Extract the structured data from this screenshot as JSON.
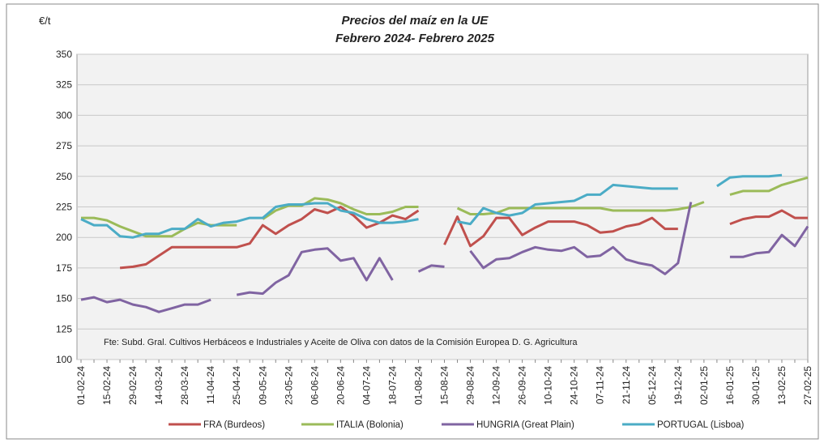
{
  "chart_data": {
    "type": "line",
    "title": "Precios del maíz en la UE",
    "subtitle": "Febrero 2024- Febrero 2025",
    "y_label": "€/t",
    "source": "Fte: Subd. Gral. Cultivos Herbáceos e Industriales y Aceite de Oliva con datos de la Comisión Europea D. G. Agricultura",
    "categories": [
      "01-02-24",
      null,
      "15-02-24",
      null,
      "29-02-24",
      null,
      "14-03-24",
      null,
      "28-03-24",
      null,
      "11-04-24",
      null,
      "25-04-24",
      null,
      "09-05-24",
      null,
      "23-05-24",
      null,
      "06-06-24",
      null,
      "20-06-24",
      null,
      "04-07-24",
      null,
      "18-07-24",
      null,
      "01-08-24",
      null,
      "15-08-24",
      null,
      "29-08-24",
      null,
      "12-09-24",
      null,
      "26-09-24",
      null,
      "10-10-24",
      null,
      "24-10-24",
      null,
      "07-11-24",
      null,
      "21-11-24",
      null,
      "05-12-24",
      null,
      "19-12-24",
      null,
      "02-01-25",
      null,
      "16-01-25",
      null,
      "30-01-25",
      null,
      "13-02-25",
      null,
      "27-02-25"
    ],
    "series": [
      {
        "name": "FRA (Burdeos)",
        "color": "#c0504d",
        "values": [
          null,
          null,
          null,
          175,
          176,
          178,
          185,
          192,
          192,
          192,
          192,
          192,
          192,
          195,
          210,
          203,
          210,
          215,
          223,
          220,
          225,
          218,
          208,
          212,
          218,
          215,
          222,
          null,
          194,
          217,
          193,
          201,
          216,
          216,
          202,
          208,
          213,
          213,
          213,
          210,
          204,
          205,
          209,
          211,
          216,
          207,
          207,
          null,
          null,
          null,
          211,
          215,
          217,
          217,
          222,
          216,
          216
        ]
      },
      {
        "name": "ITALIA (Bolonia)",
        "color": "#9bbb59",
        "values": [
          216,
          216,
          214,
          209,
          205,
          201,
          201,
          201,
          207,
          212,
          210,
          210,
          210,
          null,
          215,
          222,
          226,
          226,
          232,
          231,
          228,
          223,
          219,
          219,
          221,
          225,
          225,
          null,
          null,
          224,
          219,
          219,
          220,
          224,
          224,
          224,
          224,
          224,
          224,
          224,
          224,
          222,
          222,
          222,
          222,
          222,
          223,
          225,
          229,
          null,
          235,
          238,
          238,
          238,
          243,
          246,
          249
        ]
      },
      {
        "name": "HUNGRIA (Great Plain)",
        "color": "#8064a2",
        "values": [
          149,
          151,
          147,
          149,
          145,
          143,
          139,
          142,
          145,
          145,
          149,
          null,
          153,
          155,
          154,
          163,
          169,
          188,
          190,
          191,
          181,
          183,
          165,
          183,
          165,
          null,
          172,
          177,
          176,
          null,
          189,
          175,
          182,
          183,
          188,
          192,
          190,
          189,
          192,
          184,
          185,
          192,
          182,
          179,
          177,
          170,
          179,
          229,
          null,
          null,
          184,
          184,
          187,
          188,
          202,
          193,
          209
        ]
      },
      {
        "name": "PORTUGAL (Lisboa)",
        "color": "#4bacc6",
        "values": [
          215,
          210,
          210,
          201,
          200,
          203,
          203,
          207,
          207,
          215,
          209,
          212,
          213,
          216,
          216,
          225,
          227,
          227,
          228,
          228,
          222,
          220,
          215,
          212,
          212,
          213,
          215,
          null,
          null,
          213,
          211,
          224,
          220,
          218,
          220,
          227,
          228,
          229,
          230,
          235,
          235,
          243,
          242,
          241,
          240,
          240,
          240,
          null,
          null,
          242,
          249,
          250,
          250,
          250,
          251,
          null,
          null
        ]
      }
    ],
    "ylim": [
      100,
      350
    ],
    "yticks": [
      100,
      125,
      150,
      175,
      200,
      225,
      250,
      275,
      300,
      325,
      350
    ],
    "grid": true
  }
}
